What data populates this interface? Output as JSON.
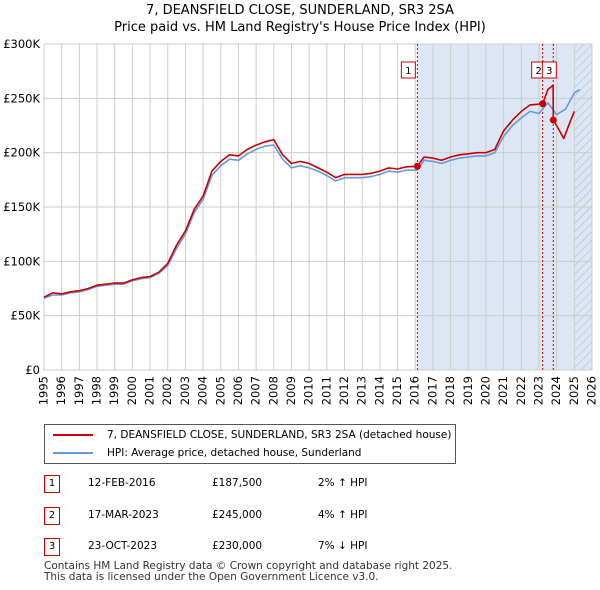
{
  "title_line1": "7, DEANSFIELD CLOSE, SUNDERLAND, SR3 2SA",
  "title_line2": "Price paid vs. HM Land Registry's House Price Index (HPI)",
  "colors": {
    "property": "#cc0000",
    "hpi": "#6699dd",
    "shade": "#dce6f5",
    "grid": "#cccccc"
  },
  "legend": {
    "property_label": "7, DEANSFIELD CLOSE, SUNDERLAND, SR3 2SA (detached house)",
    "hpi_label": "HPI: Average price, detached house, Sunderland"
  },
  "transactions": [
    {
      "num": "1",
      "date": "12-FEB-2016",
      "price": "£187,500",
      "hpi_diff": "2% ↑ HPI"
    },
    {
      "num": "2",
      "date": "17-MAR-2023",
      "price": "£245,000",
      "hpi_diff": "4% ↑ HPI"
    },
    {
      "num": "3",
      "date": "23-OCT-2023",
      "price": "£230,000",
      "hpi_diff": "7% ↓ HPI"
    }
  ],
  "footer": {
    "line1": "Contains HM Land Registry data © Crown copyright and database right 2025.",
    "line2": "This data is licensed under the Open Government Licence v3.0."
  },
  "chart_data": {
    "type": "line",
    "title": "7, DEANSFIELD CLOSE, SUNDERLAND, SR3 2SA — Price paid vs. HM Land Registry's House Price Index (HPI)",
    "xlabel": "",
    "ylabel": "",
    "xlim": [
      1995,
      2026
    ],
    "ylim": [
      0,
      300000
    ],
    "x_ticks": [
      "1995",
      "1996",
      "1997",
      "1998",
      "1999",
      "2000",
      "2001",
      "2002",
      "2003",
      "2004",
      "2005",
      "2006",
      "2007",
      "2008",
      "2009",
      "2010",
      "2011",
      "2012",
      "2013",
      "2014",
      "2015",
      "2016",
      "2017",
      "2018",
      "2019",
      "2020",
      "2021",
      "2022",
      "2023",
      "2024",
      "2025",
      "2026"
    ],
    "y_ticks": [
      {
        "value": 0,
        "label": "£0"
      },
      {
        "value": 50000,
        "label": "£50K"
      },
      {
        "value": 100000,
        "label": "£100K"
      },
      {
        "value": 150000,
        "label": "£150K"
      },
      {
        "value": 200000,
        "label": "£200K"
      },
      {
        "value": 250000,
        "label": "£250K"
      },
      {
        "value": 300000,
        "label": "£300K"
      }
    ],
    "shaded_from": 2016.12,
    "hatched_from": 2025.0,
    "series": [
      {
        "name": "7, DEANSFIELD CLOSE, SUNDERLAND, SR3 2SA (detached house)",
        "color": "#cc0000",
        "points": [
          [
            1995,
            67000
          ],
          [
            1995.5,
            71000
          ],
          [
            1996,
            70000
          ],
          [
            1996.5,
            72000
          ],
          [
            1997,
            73000
          ],
          [
            1997.5,
            75000
          ],
          [
            1998,
            78000
          ],
          [
            1998.5,
            79000
          ],
          [
            1999,
            80000
          ],
          [
            1999.5,
            80000
          ],
          [
            2000,
            83000
          ],
          [
            2000.5,
            85000
          ],
          [
            2001,
            86000
          ],
          [
            2001.5,
            90000
          ],
          [
            2002,
            98000
          ],
          [
            2002.5,
            115000
          ],
          [
            2003,
            128000
          ],
          [
            2003.5,
            148000
          ],
          [
            2004,
            160000
          ],
          [
            2004.5,
            183000
          ],
          [
            2005,
            192000
          ],
          [
            2005.5,
            198000
          ],
          [
            2006,
            197000
          ],
          [
            2006.5,
            203000
          ],
          [
            2007,
            207000
          ],
          [
            2007.5,
            210000
          ],
          [
            2008,
            212000
          ],
          [
            2008.5,
            198000
          ],
          [
            2009,
            190000
          ],
          [
            2009.5,
            192000
          ],
          [
            2010,
            190000
          ],
          [
            2010.5,
            186000
          ],
          [
            2011,
            182000
          ],
          [
            2011.5,
            177000
          ],
          [
            2012,
            180000
          ],
          [
            2012.5,
            180000
          ],
          [
            2013,
            180000
          ],
          [
            2013.5,
            181000
          ],
          [
            2014,
            183000
          ],
          [
            2014.5,
            186000
          ],
          [
            2015,
            185000
          ],
          [
            2015.5,
            187000
          ],
          [
            2016.12,
            187500
          ],
          [
            2016.5,
            196000
          ],
          [
            2017,
            195000
          ],
          [
            2017.5,
            193000
          ],
          [
            2018,
            196000
          ],
          [
            2018.5,
            198000
          ],
          [
            2019,
            199000
          ],
          [
            2019.5,
            200000
          ],
          [
            2020,
            200000
          ],
          [
            2020.5,
            203000
          ],
          [
            2021,
            220000
          ],
          [
            2021.5,
            230000
          ],
          [
            2022,
            238000
          ],
          [
            2022.5,
            244000
          ],
          [
            2023.21,
            245000
          ],
          [
            2023.5,
            258000
          ],
          [
            2023.8,
            262000
          ],
          [
            2023.81,
            230000
          ],
          [
            2024,
            225000
          ],
          [
            2024.4,
            213000
          ],
          [
            2024.8,
            230000
          ],
          [
            2025,
            238000
          ]
        ]
      },
      {
        "name": "HPI: Average price, detached house, Sunderland",
        "color": "#6699dd",
        "points": [
          [
            1995,
            66000
          ],
          [
            1995.5,
            69000
          ],
          [
            1996,
            69000
          ],
          [
            1996.5,
            71000
          ],
          [
            1997,
            72000
          ],
          [
            1997.5,
            74000
          ],
          [
            1998,
            77000
          ],
          [
            1998.5,
            78000
          ],
          [
            1999,
            79000
          ],
          [
            1999.5,
            79000
          ],
          [
            2000,
            82000
          ],
          [
            2000.5,
            84000
          ],
          [
            2001,
            85000
          ],
          [
            2001.5,
            89000
          ],
          [
            2002,
            96000
          ],
          [
            2002.5,
            112000
          ],
          [
            2003,
            125000
          ],
          [
            2003.5,
            145000
          ],
          [
            2004,
            157000
          ],
          [
            2004.5,
            179000
          ],
          [
            2005,
            188000
          ],
          [
            2005.5,
            194000
          ],
          [
            2006,
            193000
          ],
          [
            2006.5,
            199000
          ],
          [
            2007,
            203000
          ],
          [
            2007.5,
            206000
          ],
          [
            2008,
            207000
          ],
          [
            2008.5,
            194000
          ],
          [
            2009,
            186000
          ],
          [
            2009.5,
            188000
          ],
          [
            2010,
            186000
          ],
          [
            2010.5,
            183000
          ],
          [
            2011,
            179000
          ],
          [
            2011.5,
            174000
          ],
          [
            2012,
            177000
          ],
          [
            2012.5,
            177000
          ],
          [
            2013,
            177000
          ],
          [
            2013.5,
            178000
          ],
          [
            2014,
            180000
          ],
          [
            2014.5,
            183000
          ],
          [
            2015,
            182000
          ],
          [
            2015.5,
            184000
          ],
          [
            2016.12,
            184000
          ],
          [
            2016.5,
            193000
          ],
          [
            2017,
            192000
          ],
          [
            2017.5,
            190000
          ],
          [
            2018,
            193000
          ],
          [
            2018.5,
            195000
          ],
          [
            2019,
            196000
          ],
          [
            2019.5,
            197000
          ],
          [
            2020,
            197000
          ],
          [
            2020.5,
            200000
          ],
          [
            2021,
            215000
          ],
          [
            2021.5,
            225000
          ],
          [
            2022,
            232000
          ],
          [
            2022.5,
            238000
          ],
          [
            2023,
            236000
          ],
          [
            2023.5,
            246000
          ],
          [
            2024,
            235000
          ],
          [
            2024.5,
            240000
          ],
          [
            2025,
            255000
          ],
          [
            2025.3,
            258000
          ]
        ]
      }
    ],
    "sales": [
      {
        "label": "1",
        "x": 2016.12,
        "value": 187500
      },
      {
        "label": "2",
        "x": 2023.21,
        "value": 245000
      },
      {
        "label": "3",
        "x": 2023.81,
        "value": 230000
      }
    ]
  }
}
